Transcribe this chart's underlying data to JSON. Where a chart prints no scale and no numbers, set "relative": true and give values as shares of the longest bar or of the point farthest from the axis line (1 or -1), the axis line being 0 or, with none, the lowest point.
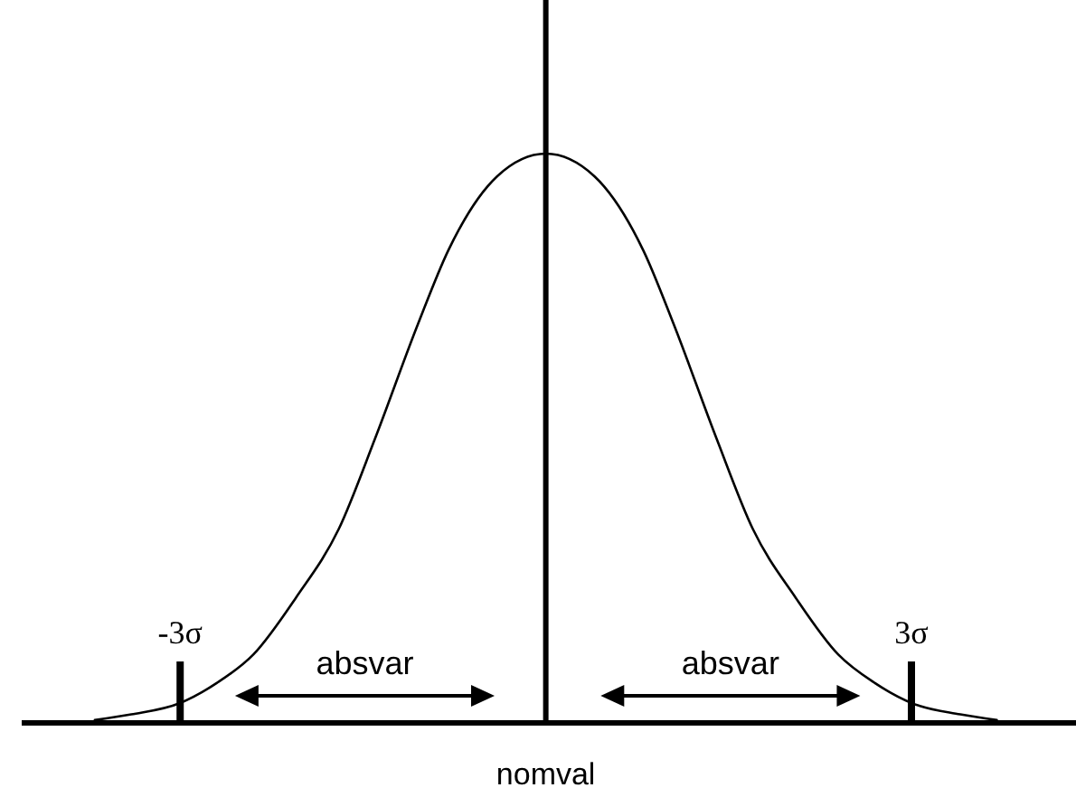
{
  "chart_data": {
    "type": "line",
    "relative": true,
    "x": [
      -3.7,
      -3.4,
      -3,
      -2.7,
      -2.4,
      -2.05,
      -1.7,
      -1.4,
      -1.05,
      -0.8,
      -0.4,
      0,
      0.4,
      0.8,
      1.05,
      1.4,
      1.7,
      2.05,
      2.4,
      2.7,
      3,
      3.4,
      3.7
    ],
    "values": [
      0.005,
      0.015,
      0.035,
      0.07,
      0.12,
      0.22,
      0.34,
      0.5,
      0.7,
      0.83,
      0.96,
      1,
      0.96,
      0.83,
      0.7,
      0.5,
      0.34,
      0.22,
      0.12,
      0.07,
      0.035,
      0.015,
      0.005
    ],
    "color": "#000000",
    "xlim": [
      -4.3,
      4.35
    ],
    "xticks": [
      {
        "value": -3,
        "label": "-3σ"
      },
      {
        "value": 3,
        "label": "3σ"
      }
    ],
    "ref_lines": [
      {
        "axis": "x",
        "value": -3
      },
      {
        "axis": "x",
        "value": 0,
        "label": "nomval"
      },
      {
        "axis": "x",
        "value": 3
      }
    ],
    "annotations": [
      "absvar",
      "absvar"
    ]
  }
}
